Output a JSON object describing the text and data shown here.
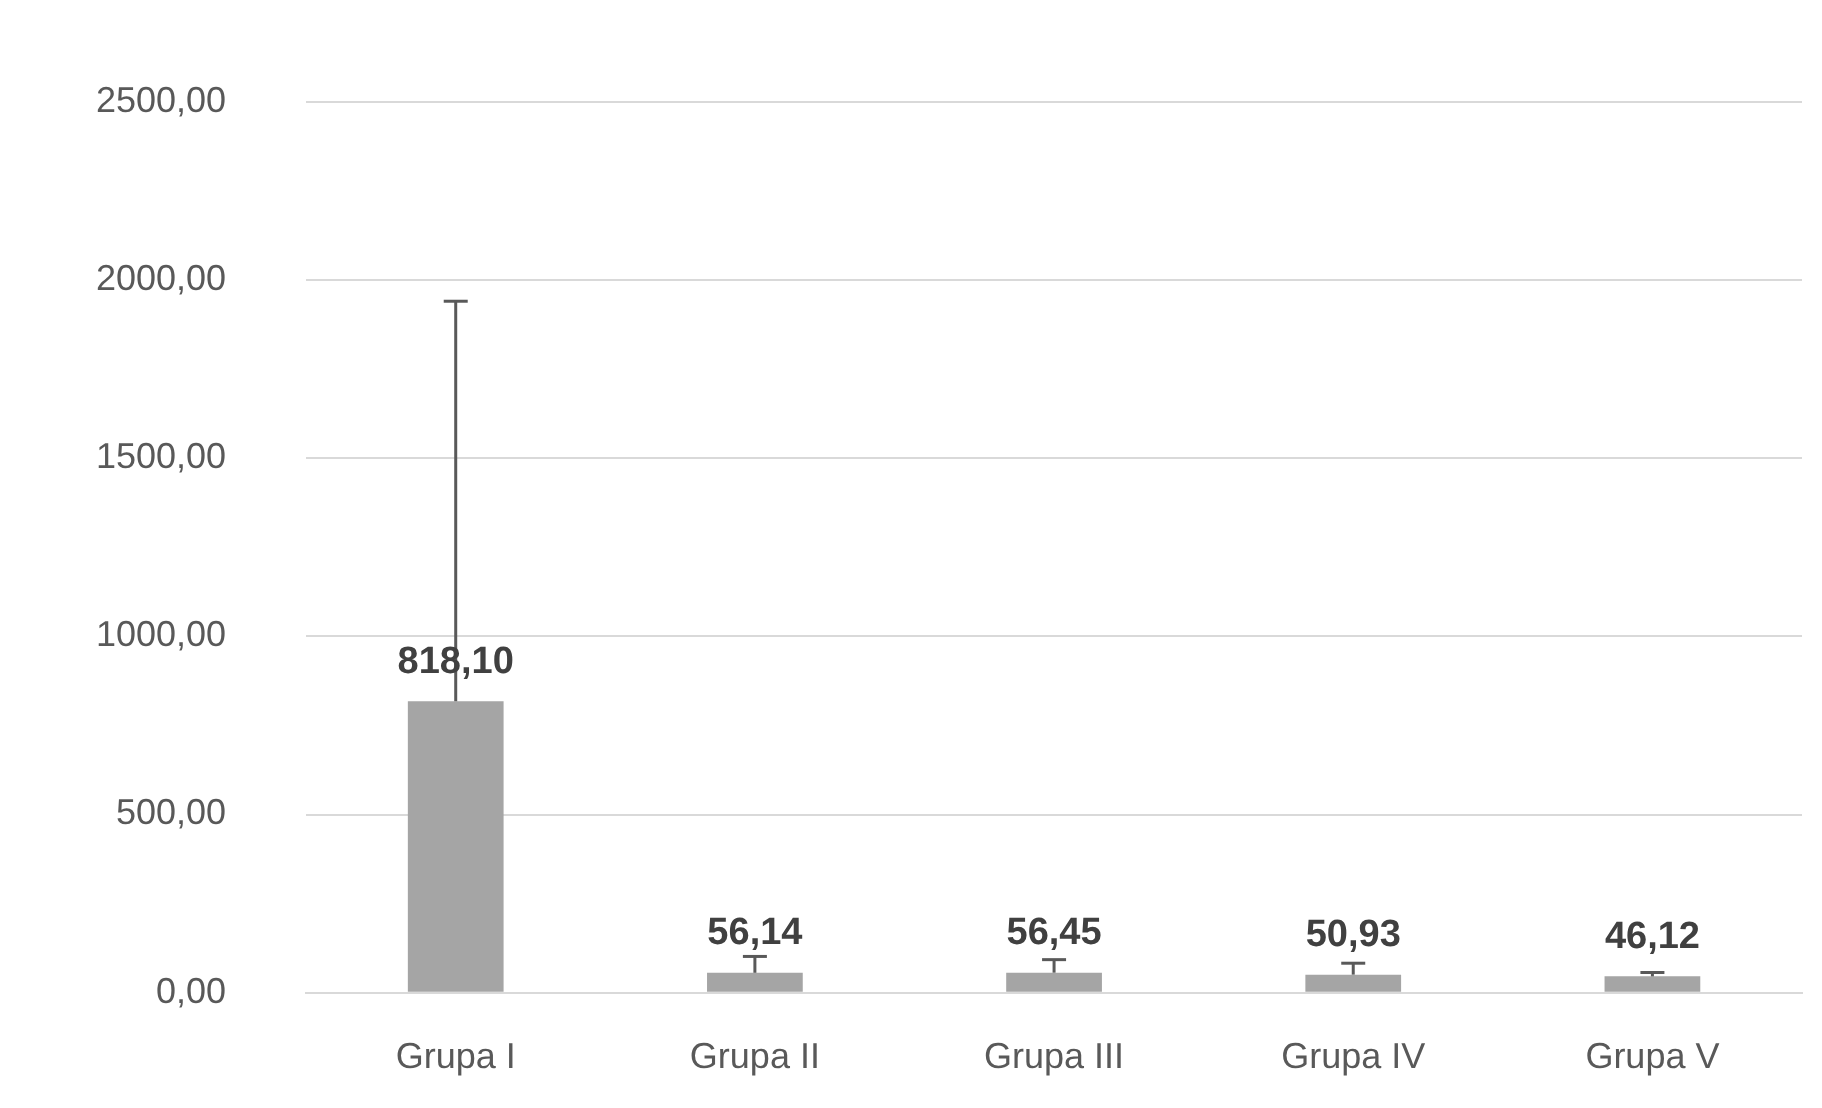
{
  "chart_data": {
    "type": "bar",
    "categories": [
      "Grupa I",
      "Grupa II",
      "Grupa III",
      "Grupa IV",
      "Grupa V"
    ],
    "values": [
      818.1,
      56.14,
      56.45,
      50.93,
      46.12
    ],
    "errors": [
      [
        818.1,
        1940
      ],
      [
        56.14,
        102
      ],
      [
        56.45,
        93
      ],
      [
        50.93,
        83
      ],
      [
        46.12,
        57
      ]
    ],
    "value_labels": [
      "818,10",
      "56,14",
      "56,45",
      "50,93",
      "46,12"
    ],
    "color": "#a5a5a5",
    "ylim": [
      0,
      2500
    ],
    "yticks": [
      {
        "value": 0,
        "label": "0,00"
      },
      {
        "value": 500,
        "label": "500,00"
      },
      {
        "value": 1000,
        "label": "1000,00"
      },
      {
        "value": 1500,
        "label": "1500,00"
      },
      {
        "value": 2000,
        "label": "2000,00"
      },
      {
        "value": 2500,
        "label": "2500,00"
      }
    ],
    "grid": "y",
    "legend": false
  }
}
